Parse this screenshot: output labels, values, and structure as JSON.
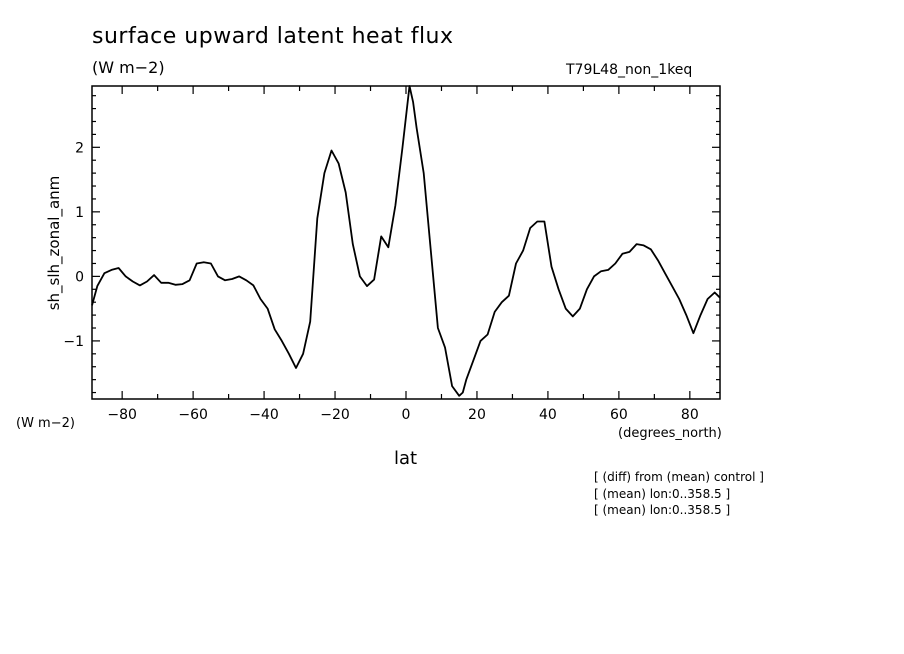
{
  "figure": {
    "title": "surface upward latent heat flux",
    "units": "(W m−2)",
    "run_label": "T79L48_non_1keq",
    "y_axis_units": "(W m−2)",
    "x_axis_units": "(degrees_north)",
    "notes": [
      "[ (diff) from (mean) control ]",
      "[ (mean) lon:0..358.5 ]",
      "[ (mean) lon:0..358.5 ]"
    ]
  },
  "chart_data": {
    "type": "line",
    "title": "surface upward latent heat flux",
    "xlabel": "lat",
    "ylabel": "sh_slh_zonal_anm",
    "xlim": [
      -88.5,
      88.5
    ],
    "ylim": [
      -1.9,
      2.95
    ],
    "x_ticks": [
      -80,
      -60,
      -40,
      -20,
      0,
      20,
      40,
      60,
      80
    ],
    "y_ticks": [
      -1,
      0,
      1,
      2
    ],
    "grid": false,
    "series": [
      {
        "x": [
          -88.5,
          -87,
          -85,
          -83,
          -81,
          -79,
          -77,
          -75,
          -73,
          -71,
          -69,
          -67,
          -65,
          -63,
          -61,
          -59,
          -57,
          -55,
          -53,
          -51,
          -49,
          -47,
          -45,
          -43,
          -41,
          -39,
          -37,
          -35,
          -33,
          -31,
          -29,
          -27,
          -25,
          -23,
          -21,
          -19,
          -17,
          -15,
          -13,
          -11,
          -9,
          -7,
          -5,
          -3,
          -1,
          1,
          2,
          3,
          5,
          7,
          9,
          11,
          13,
          15,
          16,
          17,
          19,
          21,
          23,
          25,
          27,
          29,
          31,
          33,
          35,
          37,
          39,
          41,
          43,
          45,
          47,
          49,
          51,
          53,
          55,
          57,
          59,
          61,
          63,
          65,
          67,
          69,
          71,
          73,
          75,
          77,
          79,
          81,
          83,
          85,
          87,
          88.5
        ],
        "y": [
          -0.45,
          -0.15,
          0.05,
          0.1,
          0.13,
          0.0,
          -0.08,
          -0.14,
          -0.08,
          0.02,
          -0.1,
          -0.1,
          -0.13,
          -0.12,
          -0.06,
          0.2,
          0.22,
          0.2,
          0.0,
          -0.06,
          -0.04,
          0.0,
          -0.06,
          -0.14,
          -0.35,
          -0.5,
          -0.82,
          -1.0,
          -1.2,
          -1.42,
          -1.2,
          -0.7,
          0.9,
          1.6,
          1.95,
          1.75,
          1.3,
          0.5,
          0.0,
          -0.15,
          -0.05,
          0.62,
          0.45,
          1.1,
          2.0,
          2.95,
          2.7,
          2.3,
          1.6,
          0.4,
          -0.8,
          -1.1,
          -1.7,
          -1.85,
          -1.8,
          -1.6,
          -1.3,
          -1.0,
          -0.9,
          -0.55,
          -0.4,
          -0.3,
          0.2,
          0.4,
          0.75,
          0.85,
          0.85,
          0.15,
          -0.2,
          -0.5,
          -0.62,
          -0.5,
          -0.2,
          0.0,
          0.08,
          0.1,
          0.2,
          0.35,
          0.38,
          0.5,
          0.48,
          0.42,
          0.25,
          0.05,
          -0.15,
          -0.35,
          -0.6,
          -0.88,
          -0.6,
          -0.35,
          -0.25,
          -0.33
        ]
      }
    ]
  }
}
